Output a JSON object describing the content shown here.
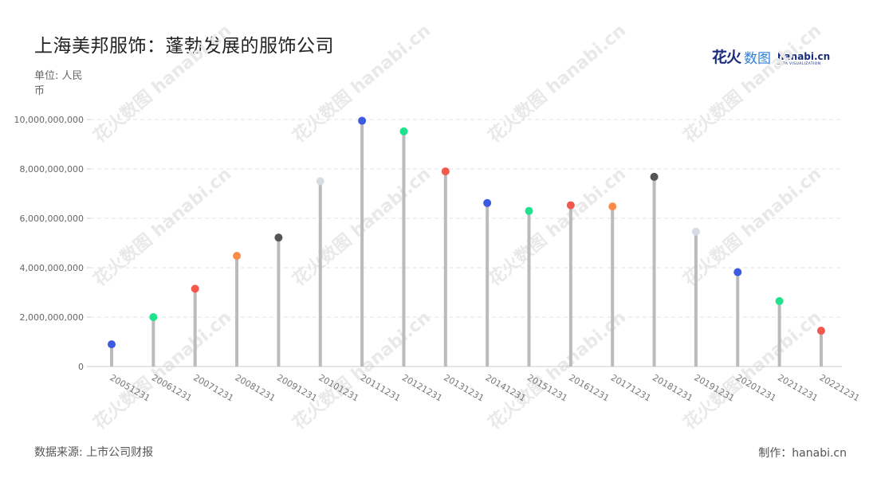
{
  "header": {
    "title": "上海美邦服饰：蓬勃发展的服饰公司",
    "unit": "单位: 人民币",
    "logo": {
      "cn_bold": "花火",
      "cn_light": "数图",
      "en": "hanabi.cn",
      "sub": "DATA VISUALIZATION"
    }
  },
  "footer": {
    "source": "数据来源: 上市公司财报",
    "credit": "制作：hanabi.cn"
  },
  "watermark_text": "花火数图 hanabi.cn",
  "chart_data": {
    "type": "lollipop",
    "title": "上海美邦服饰：蓬勃发展的服饰公司",
    "ylabel": "单位: 人民币",
    "xlabel": "",
    "ylim": [
      0,
      10000000000
    ],
    "yticks": [
      0,
      2000000000,
      4000000000,
      6000000000,
      8000000000,
      10000000000
    ],
    "ytick_labels": [
      "0",
      "2,000,000,000",
      "4,000,000,000",
      "6,000,000,000",
      "8,000,000,000",
      "10,000,000,000"
    ],
    "grid": true,
    "stem_color": "#bbbbbb",
    "categories": [
      "20051231",
      "20061231",
      "20071231",
      "20081231",
      "20091231",
      "20101231",
      "20111231",
      "20121231",
      "20131231",
      "20141231",
      "20151231",
      "20161231",
      "20171231",
      "20181231",
      "20191231",
      "20201231",
      "20211231",
      "20221231"
    ],
    "values": [
      900000000,
      2000000000,
      3150000000,
      4480000000,
      5220000000,
      7500000000,
      9950000000,
      9520000000,
      7900000000,
      6620000000,
      6300000000,
      6530000000,
      6480000000,
      7680000000,
      5460000000,
      3820000000,
      2650000000,
      1450000000
    ],
    "point_colors": [
      "#3d5be0",
      "#1ee28c",
      "#f2584c",
      "#fa8c4a",
      "#555555",
      "#d6dbe4",
      "#3d5be0",
      "#1ee28c",
      "#f2584c",
      "#3d5be0",
      "#1ee28c",
      "#f2584c",
      "#fa8c4a",
      "#555555",
      "#d6dbe4",
      "#3d5be0",
      "#1ee28c",
      "#f2584c"
    ]
  }
}
